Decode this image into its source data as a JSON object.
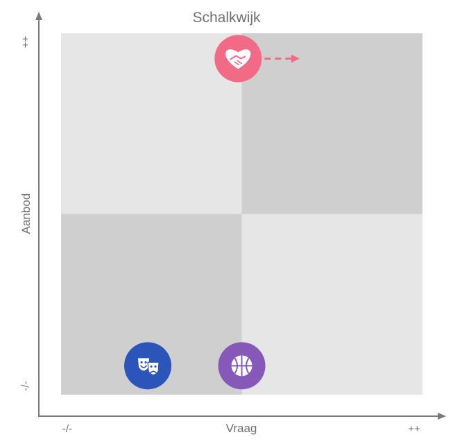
{
  "chart_data": {
    "type": "quadrant-matrix",
    "title": "Schalkwijk",
    "xlabel": "Vraag",
    "ylabel": "Aanbod",
    "x_min_label": "-/-",
    "x_max_label": "++",
    "y_min_label": "-/-",
    "y_max_label": "++",
    "xlim": [
      0,
      1
    ],
    "ylim": [
      0,
      1
    ],
    "quadrant_colors": {
      "top_left": "#e6e6e6",
      "top_right": "#d0cfd0",
      "bottom_left": "#d0cfd0",
      "bottom_right": "#e6e6e6"
    },
    "points": [
      {
        "id": "zorg",
        "icon": "heart-handshake-icon",
        "x": 0.49,
        "y": 0.93,
        "color": "#f16b86",
        "arrow": {
          "direction": "right",
          "to_x": 0.66
        }
      },
      {
        "id": "cultuur",
        "icon": "theater-masks-icon",
        "x": 0.24,
        "y": 0.08,
        "color": "#2b55b8"
      },
      {
        "id": "sport",
        "icon": "basketball-icon",
        "x": 0.5,
        "y": 0.08,
        "color": "#8659b8"
      }
    ]
  },
  "colors": {
    "axis": "#7a7a7a",
    "text": "#707070"
  }
}
